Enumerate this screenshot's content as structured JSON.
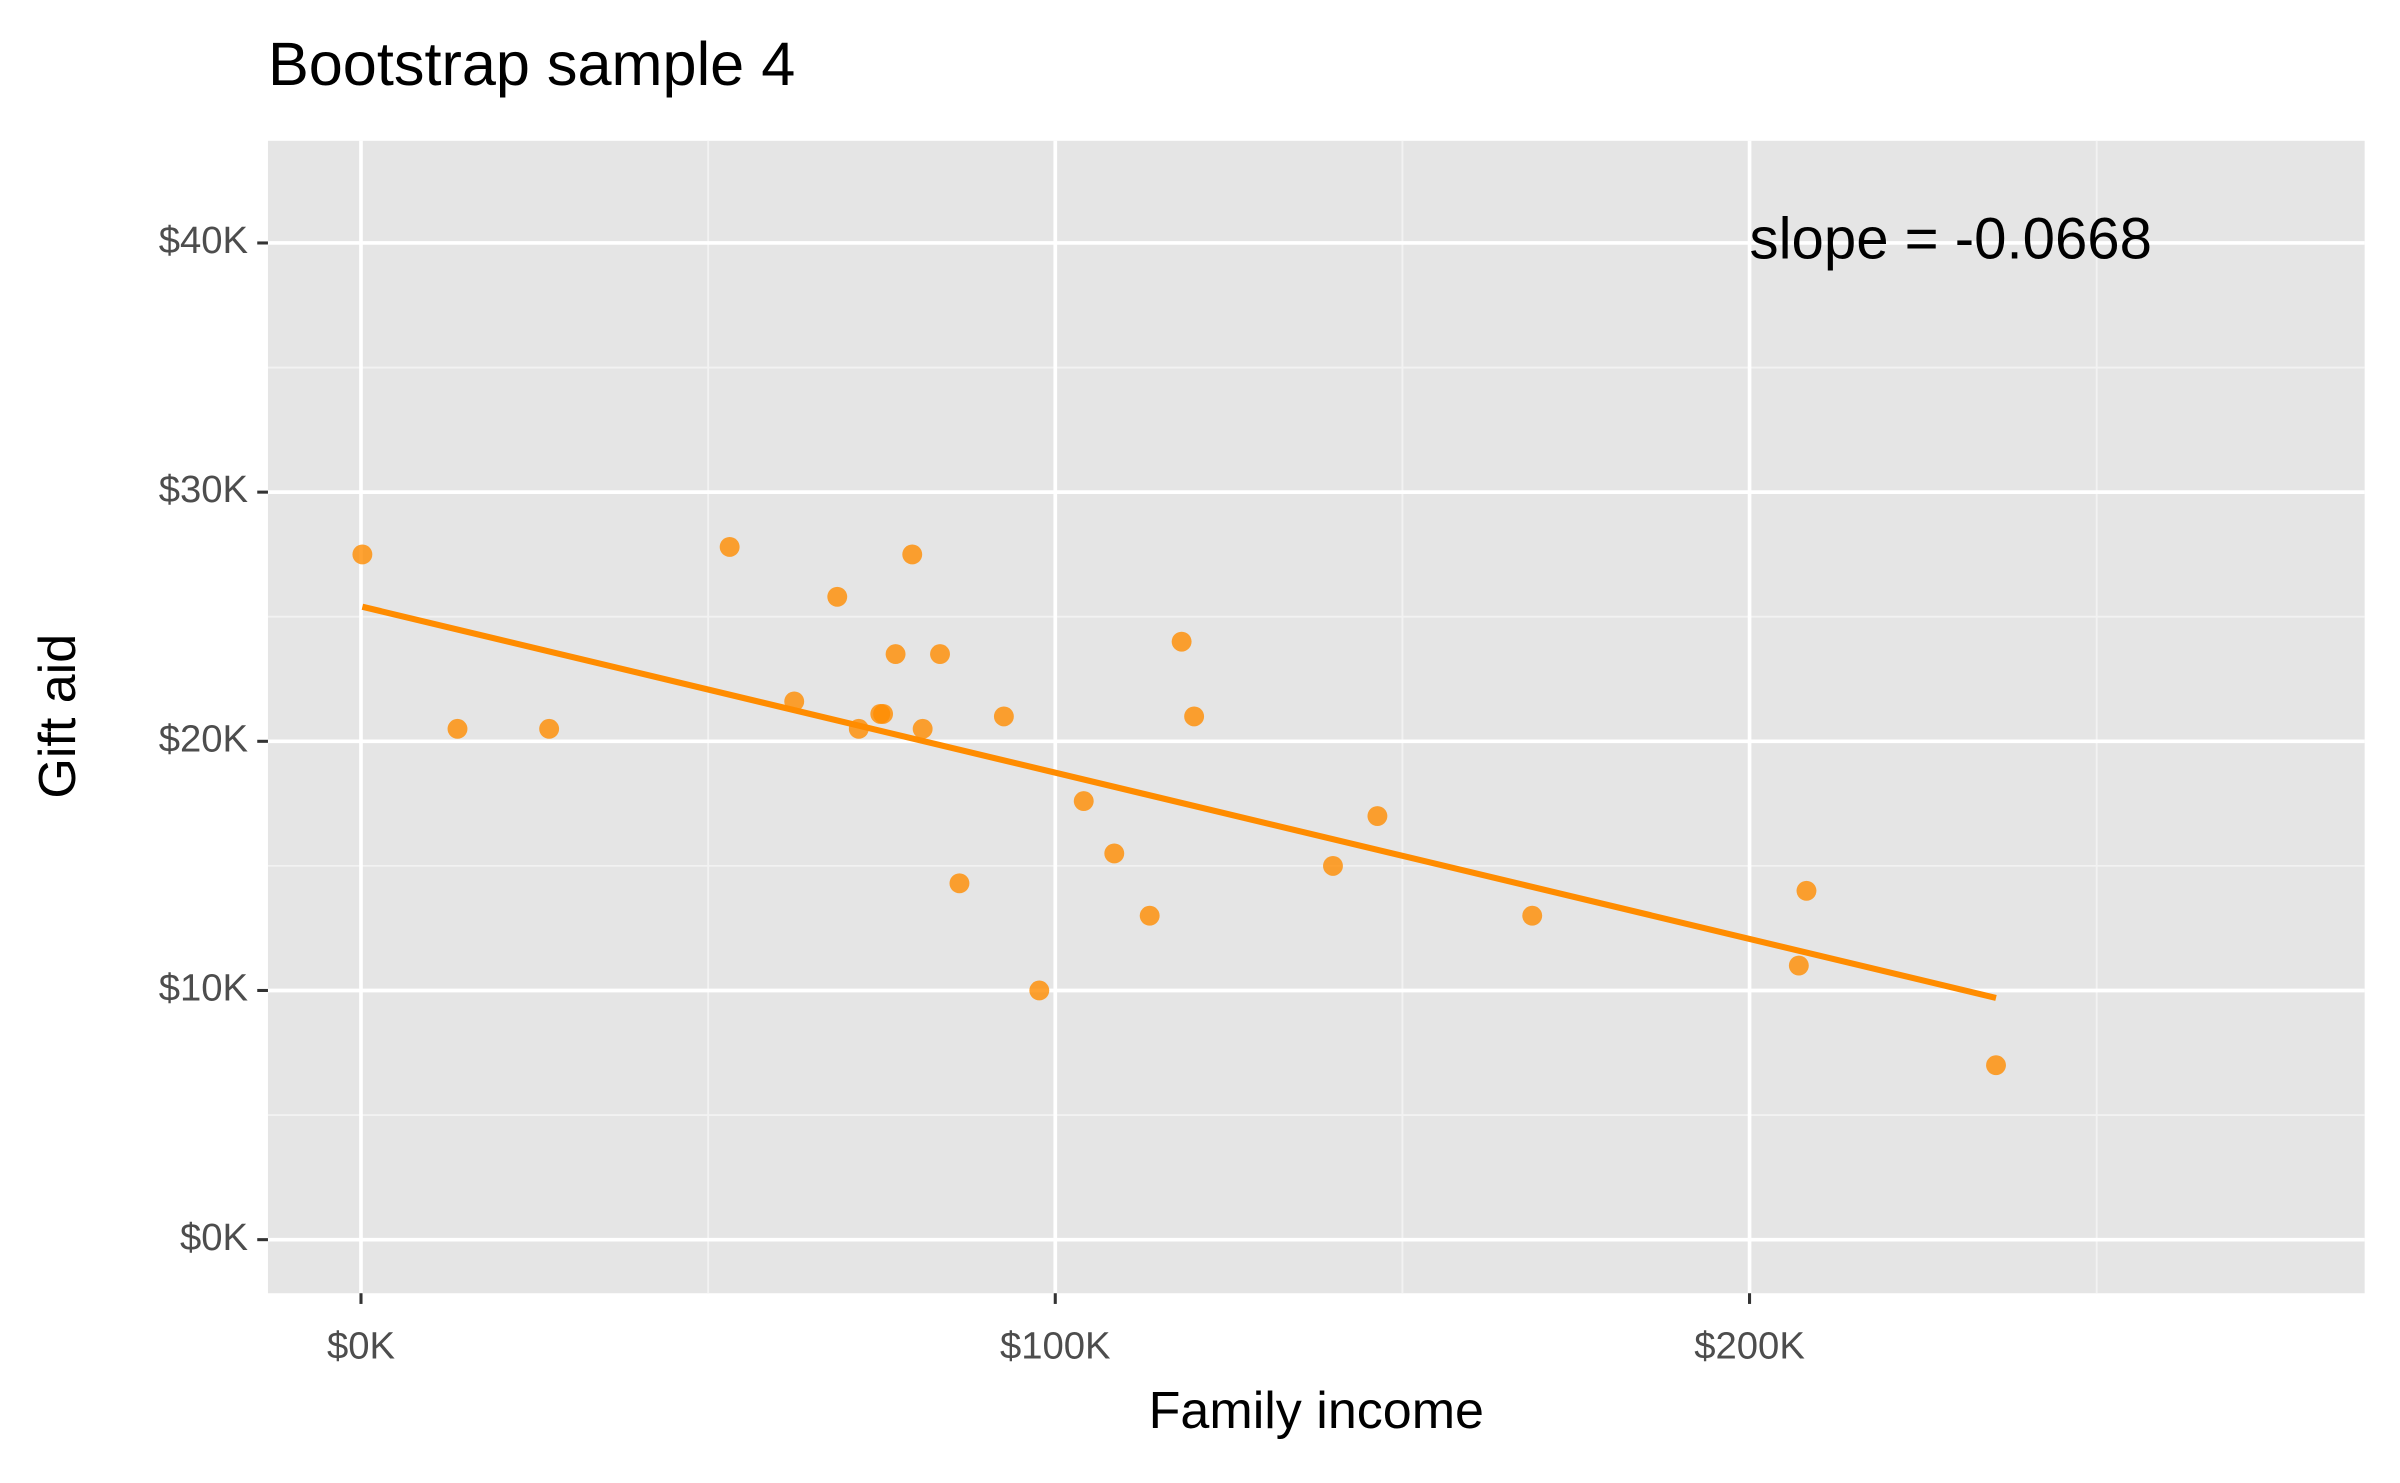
{
  "chart_data": {
    "type": "scatter",
    "title": "Bootstrap sample 4",
    "x_label": "Family income",
    "y_label": "Gift aid",
    "series": [
      {
        "color": "#ff8c00",
        "x": [
          200,
          13900,
          27100,
          53100,
          62400,
          68600,
          71700,
          74800,
          75200,
          77000,
          79400,
          80900,
          83400,
          86200,
          92600,
          97700,
          104100,
          108500,
          113600,
          118200,
          120000,
          140000,
          146400,
          168700,
          207100,
          208200,
          235500
        ],
        "values": [
          27500,
          20500,
          20500,
          27800,
          21600,
          25800,
          20500,
          21100,
          21100,
          23500,
          27500,
          20500,
          23500,
          14300,
          21000,
          10000,
          17600,
          15500,
          13000,
          24000,
          21000,
          15000,
          17000,
          13000,
          11000,
          14000,
          7000
        ]
      }
    ],
    "trend_line": {
      "color": "#ff8c00",
      "x": [
        200,
        235500
      ],
      "values": [
        25400,
        9700
      ]
    },
    "annotation": {
      "text": "slope = -0.0668",
      "x": 200000,
      "y": 40000
    },
    "xlim": [
      -13400,
      288600
    ],
    "ylim": [
      -2150,
      44100
    ],
    "xticks": [
      {
        "value": 0,
        "label": "$0K"
      },
      {
        "value": 100000,
        "label": "$100K"
      },
      {
        "value": 200000,
        "label": "$200K"
      }
    ],
    "yticks": [
      {
        "value": 0,
        "label": "$0K"
      },
      {
        "value": 10000,
        "label": "$10K"
      },
      {
        "value": 20000,
        "label": "$20K"
      },
      {
        "value": 30000,
        "label": "$30K"
      },
      {
        "value": 40000,
        "label": "$40K"
      }
    ],
    "x_minor_grid": [
      50000,
      150000,
      250000
    ],
    "y_minor_grid": [
      5000,
      15000,
      25000,
      35000
    ],
    "grid": true
  }
}
